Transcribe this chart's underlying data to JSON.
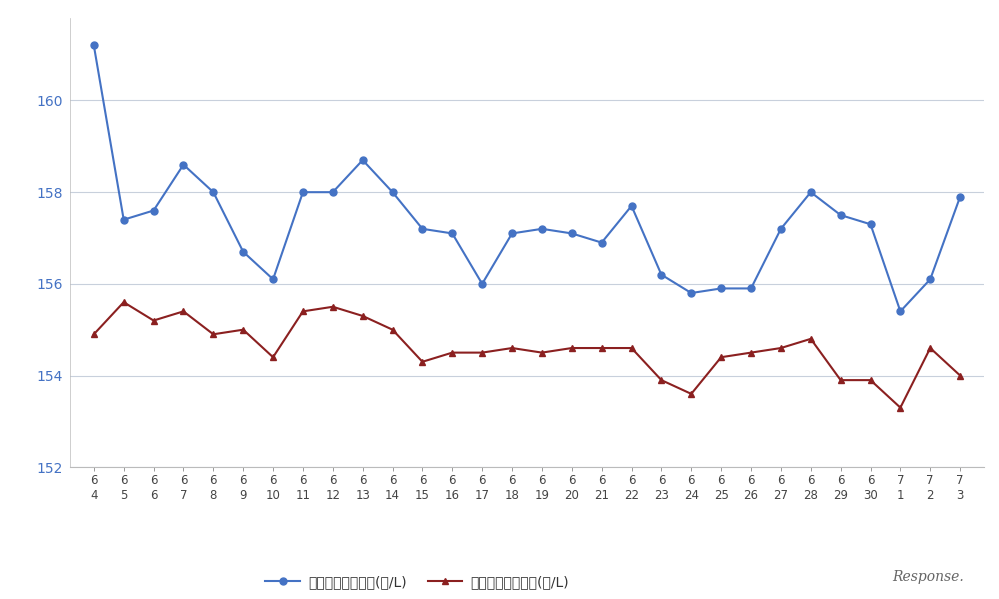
{
  "x_labels_month": [
    "6",
    "6",
    "6",
    "6",
    "6",
    "6",
    "6",
    "6",
    "6",
    "6",
    "6",
    "6",
    "6",
    "6",
    "6",
    "6",
    "6",
    "6",
    "6",
    "6",
    "6",
    "6",
    "6",
    "6",
    "6",
    "6",
    "6",
    "7",
    "7",
    "7"
  ],
  "x_labels_day": [
    "4",
    "5",
    "6",
    "7",
    "8",
    "9",
    "10",
    "11",
    "12",
    "13",
    "14",
    "15",
    "16",
    "17",
    "18",
    "19",
    "20",
    "21",
    "22",
    "23",
    "24",
    "25",
    "26",
    "27",
    "28",
    "29",
    "30",
    "1",
    "2",
    "3"
  ],
  "blue_values": [
    161.2,
    157.4,
    157.6,
    158.6,
    158.0,
    156.7,
    156.1,
    158.0,
    158.0,
    158.7,
    158.0,
    157.2,
    157.1,
    156.0,
    157.1,
    157.2,
    157.1,
    156.9,
    157.7,
    156.2,
    155.8,
    155.9,
    155.9,
    157.2,
    158.0,
    157.5,
    157.3,
    155.4,
    156.1,
    157.9
  ],
  "red_values": [
    154.9,
    155.6,
    155.2,
    155.4,
    154.9,
    155.0,
    154.4,
    155.4,
    155.5,
    155.3,
    155.0,
    154.3,
    154.5,
    154.5,
    154.6,
    154.5,
    154.6,
    154.6,
    154.6,
    153.9,
    153.6,
    154.4,
    154.5,
    154.6,
    154.8,
    153.9,
    153.9,
    153.3,
    154.6,
    154.0
  ],
  "blue_color": "#4472C4",
  "red_color": "#8B2020",
  "bg_color": "#FFFFFF",
  "grid_color": "#C8D0DC",
  "ylim": [
    152,
    161.8
  ],
  "yticks": [
    152,
    154,
    156,
    158,
    160
  ],
  "legend_blue": "ハイオク看板価格(円/L)",
  "legend_red": "ハイオク実売価格(円/L)",
  "marker_size": 5,
  "linewidth": 1.5,
  "response_text": "Response."
}
